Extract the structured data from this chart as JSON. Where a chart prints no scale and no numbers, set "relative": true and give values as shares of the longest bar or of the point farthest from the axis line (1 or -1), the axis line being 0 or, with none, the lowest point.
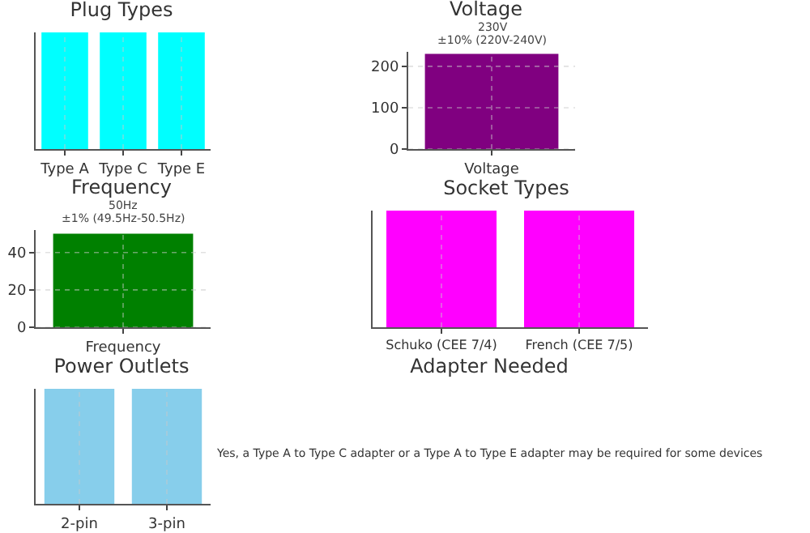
{
  "chart_data": [
    {
      "type": "bar",
      "title": "Plug Types",
      "categories": [
        "Type A",
        "Type C",
        "Type E"
      ],
      "values": [
        1,
        1,
        1
      ],
      "color": "#00ffff",
      "relative": true,
      "grid": "x"
    },
    {
      "type": "bar",
      "title": "Voltage",
      "categories": [
        "Voltage"
      ],
      "values": [
        230
      ],
      "color": "#800080",
      "ylim": [
        0,
        235
      ],
      "yticks": [
        0,
        100,
        200
      ],
      "grid": true,
      "annotations": [
        "230V",
        "±10% (220V-240V)"
      ]
    },
    {
      "type": "bar",
      "title": "Frequency",
      "categories": [
        "Frequency"
      ],
      "values": [
        50
      ],
      "color": "#008000",
      "ylim": [
        0,
        52
      ],
      "yticks": [
        0,
        20,
        40
      ],
      "grid": true,
      "annotations": [
        "50Hz",
        "±1% (49.5Hz-50.5Hz)"
      ]
    },
    {
      "type": "bar",
      "title": "Socket Types",
      "categories": [
        "Schuko (CEE 7/4)",
        "French (CEE 7/5)"
      ],
      "values": [
        1,
        1
      ],
      "color": "#ff00ff",
      "relative": true,
      "grid": "x"
    },
    {
      "type": "bar",
      "title": "Power Outlets",
      "categories": [
        "2-pin",
        "3-pin"
      ],
      "values": [
        1,
        1
      ],
      "color": "#87ceeb",
      "relative": true,
      "grid": "x"
    },
    {
      "type": "other",
      "title": "Adapter Needed",
      "annotations": [
        "Yes, a Type A to Type C adapter or a Type A to Type E adapter may be required for some devices"
      ]
    }
  ]
}
